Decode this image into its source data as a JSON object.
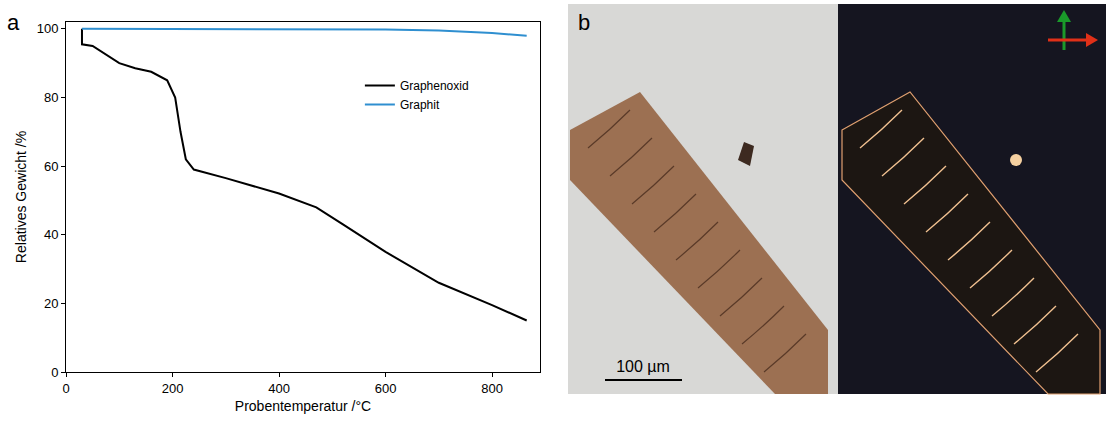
{
  "chart_data": {
    "type": "line",
    "annotations": [
      "a"
    ],
    "x_label": "Probentemperatur /°C",
    "y_label": "Relatives Gewicht /%",
    "xlim": [
      0,
      890
    ],
    "xticks": [
      0,
      200,
      400,
      600,
      800
    ],
    "ylim": [
      0,
      102
    ],
    "yticks": [
      0,
      20,
      40,
      60,
      80,
      100
    ],
    "grid": false,
    "legend": "upper right",
    "series": [
      {
        "name": "Graphenoxid",
        "color": "#000000",
        "x": [
          30,
          30,
          50,
          80,
          100,
          130,
          160,
          190,
          205,
          215,
          225,
          240,
          300,
          400,
          470,
          520,
          600,
          700,
          800,
          865
        ],
        "values": [
          100,
          95.5,
          95,
          92,
          90,
          88.5,
          87.5,
          85,
          80,
          70,
          62,
          59,
          56.5,
          52,
          48,
          43,
          35,
          26,
          19.5,
          15
        ]
      },
      {
        "name": "Graphit",
        "color": "#2f8fd0",
        "x": [
          30,
          200,
          400,
          600,
          700,
          800,
          865
        ],
        "values": [
          100,
          100,
          99.9,
          99.8,
          99.5,
          98.8,
          98
        ]
      }
    ]
  },
  "image_panel": {
    "label": "b",
    "scale_bar": "100 µm"
  }
}
